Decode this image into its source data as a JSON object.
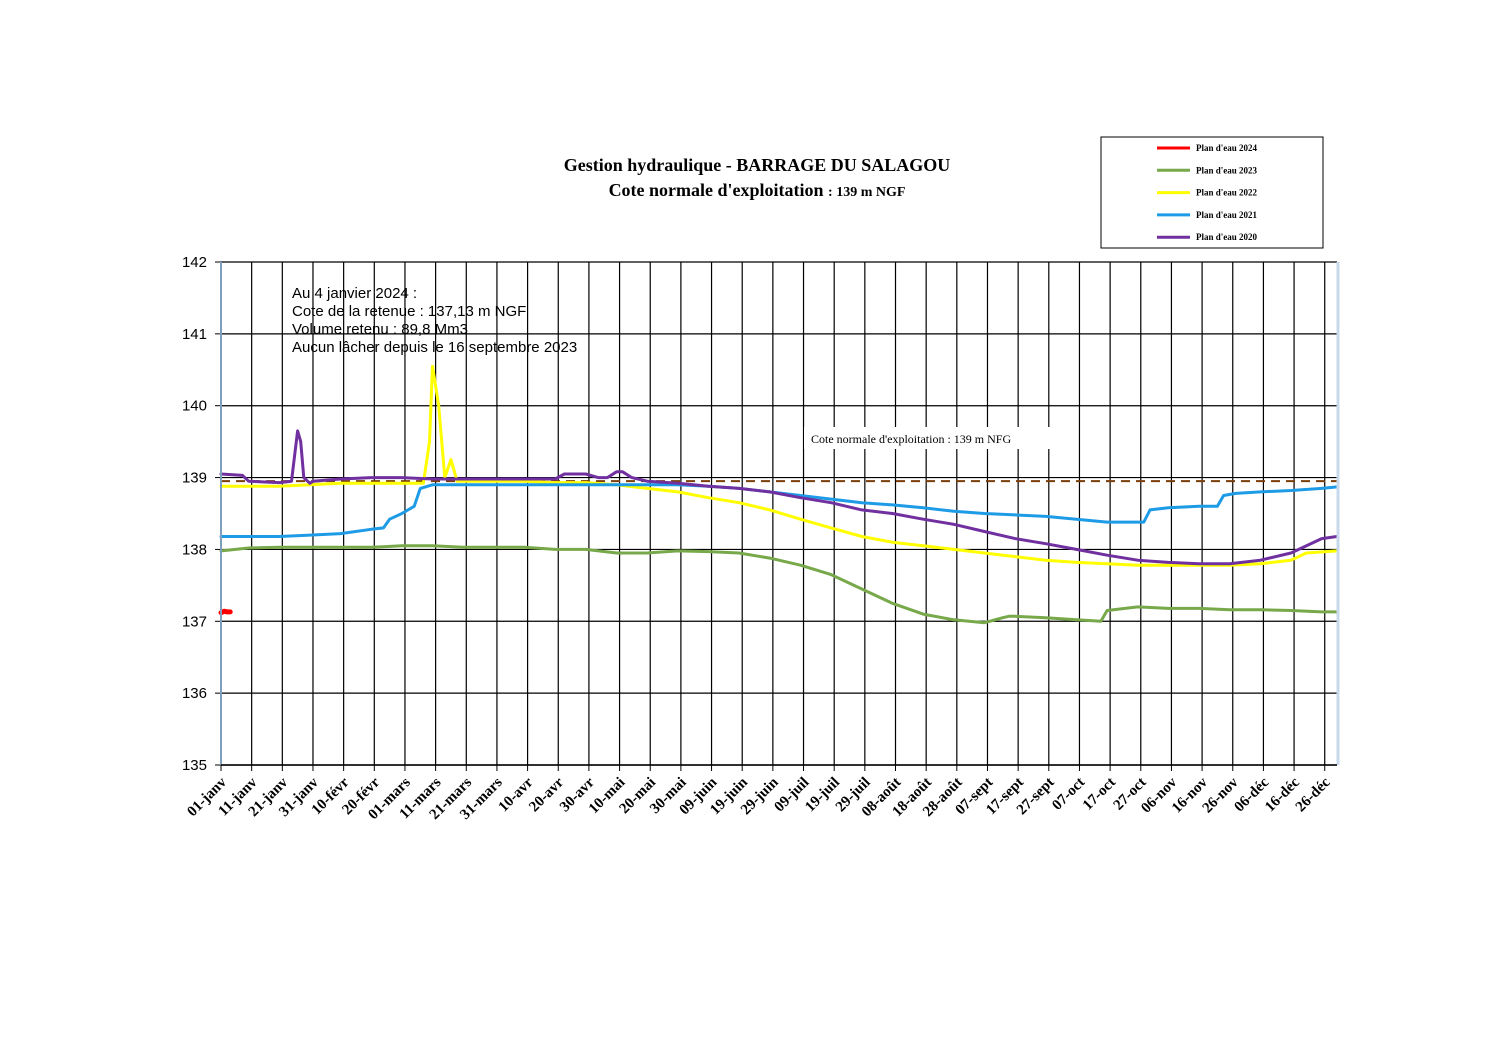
{
  "chart_data": {
    "type": "line",
    "title": "Gestion hydraulique - BARRAGE DU SALAGOU",
    "subtitle": "Cote normale d'exploitation",
    "subtitle_value": ": 139 m NGF",
    "xlabel": "",
    "ylabel": "",
    "ylim": [
      135,
      142
    ],
    "yticks": [
      "142",
      "141",
      "140",
      "139",
      "138",
      "137",
      "136",
      "135"
    ],
    "xlim": [
      1,
      365
    ],
    "grid": true,
    "legend_position": "top-right",
    "categories": [
      "01-janv",
      "11-janv",
      "21-janv",
      "31-janv",
      "10-févr",
      "20-févr",
      "01-mars",
      "11-mars",
      "21-mars",
      "31-mars",
      "10-avr",
      "20-avr",
      "30-avr",
      "10-mai",
      "20-mai",
      "30-mai",
      "09-juin",
      "19-juin",
      "29-juin",
      "09-juil",
      "19-juil",
      "29-juil",
      "08-août",
      "18-août",
      "28-août",
      "07-sept",
      "17-sept",
      "27-sept",
      "07-oct",
      "17-oct",
      "27-oct",
      "06-nov",
      "16-nov",
      "26-nov",
      "06-déc",
      "16-déc",
      "26-déc"
    ],
    "category_days": [
      1,
      11,
      21,
      31,
      41,
      51,
      61,
      71,
      81,
      91,
      101,
      111,
      121,
      131,
      141,
      151,
      161,
      171,
      181,
      191,
      201,
      211,
      221,
      231,
      241,
      251,
      261,
      271,
      281,
      291,
      301,
      311,
      321,
      331,
      341,
      351,
      361
    ],
    "reference_line": {
      "value": 138.95,
      "label": "Cote normale d'exploitation : 139 m NFG",
      "color": "#7a3e0a"
    },
    "annotations": [
      "Au 4 janvier 2024 :",
      "Cote de la retenue : 137,13 m NGF",
      "Volume retenu : 89,8 Mm3",
      "Aucun lâcher depuis le 16 septembre 2023"
    ],
    "series": [
      {
        "name": "Plan d'eau 2024",
        "color": "#ff0000",
        "x": [
          1,
          2,
          3,
          4
        ],
        "y": [
          137.12,
          137.14,
          137.13,
          137.13
        ]
      },
      {
        "name": "Plan d'eau 2023",
        "color": "#77a84a",
        "x": [
          1,
          10,
          20,
          30,
          40,
          50,
          60,
          70,
          80,
          90,
          100,
          110,
          120,
          130,
          140,
          150,
          160,
          170,
          180,
          190,
          200,
          210,
          220,
          230,
          240,
          250,
          256,
          258,
          260,
          270,
          280,
          288,
          290,
          300,
          310,
          320,
          330,
          340,
          350,
          360,
          365
        ],
        "y": [
          137.98,
          138.02,
          138.03,
          138.03,
          138.03,
          138.03,
          138.05,
          138.05,
          138.03,
          138.03,
          138.03,
          138.0,
          138.0,
          137.95,
          137.95,
          137.98,
          137.97,
          137.95,
          137.88,
          137.78,
          137.65,
          137.45,
          137.25,
          137.1,
          137.02,
          136.98,
          137.05,
          137.07,
          137.07,
          137.05,
          137.02,
          137.0,
          137.15,
          137.2,
          137.18,
          137.18,
          137.16,
          137.16,
          137.15,
          137.13,
          137.13
        ]
      },
      {
        "name": "Plan d'eau 2022",
        "color": "#ffff00",
        "x": [
          1,
          10,
          20,
          30,
          40,
          50,
          60,
          67,
          69,
          70,
          72,
          74,
          76,
          78,
          80,
          90,
          100,
          110,
          120,
          130,
          140,
          150,
          160,
          170,
          180,
          190,
          200,
          210,
          220,
          230,
          240,
          250,
          260,
          270,
          280,
          290,
          300,
          310,
          320,
          330,
          340,
          350,
          355,
          365
        ],
        "y": [
          138.88,
          138.88,
          138.88,
          138.9,
          138.92,
          138.92,
          138.92,
          138.92,
          139.5,
          140.55,
          140.0,
          139.0,
          139.25,
          138.95,
          138.95,
          138.95,
          138.95,
          138.93,
          138.93,
          138.9,
          138.85,
          138.8,
          138.72,
          138.65,
          138.55,
          138.42,
          138.3,
          138.18,
          138.1,
          138.05,
          138.0,
          137.95,
          137.9,
          137.85,
          137.82,
          137.8,
          137.78,
          137.78,
          137.78,
          137.78,
          137.8,
          137.85,
          137.95,
          137.98
        ]
      },
      {
        "name": "Plan d'eau 2021",
        "color": "#1e9be6",
        "x": [
          1,
          10,
          20,
          30,
          40,
          50,
          54,
          56,
          60,
          64,
          66,
          70,
          80,
          90,
          100,
          110,
          120,
          130,
          140,
          150,
          160,
          170,
          180,
          190,
          200,
          210,
          220,
          230,
          240,
          250,
          260,
          270,
          280,
          290,
          302,
          304,
          310,
          320,
          326,
          328,
          332,
          340,
          350,
          360,
          365
        ],
        "y": [
          138.18,
          138.18,
          138.18,
          138.2,
          138.22,
          138.28,
          138.3,
          138.42,
          138.5,
          138.6,
          138.85,
          138.9,
          138.9,
          138.9,
          138.9,
          138.9,
          138.9,
          138.9,
          138.9,
          138.9,
          138.88,
          138.85,
          138.8,
          138.75,
          138.7,
          138.65,
          138.62,
          138.58,
          138.53,
          138.5,
          138.48,
          138.46,
          138.42,
          138.38,
          138.38,
          138.55,
          138.58,
          138.6,
          138.6,
          138.75,
          138.78,
          138.8,
          138.82,
          138.85,
          138.87
        ]
      },
      {
        "name": "Plan d'eau 2020",
        "color": "#7030a0",
        "x": [
          1,
          8,
          10,
          20,
          24,
          26,
          27,
          28,
          30,
          31,
          40,
          50,
          60,
          70,
          80,
          90,
          100,
          110,
          113,
          120,
          124,
          127,
          130,
          132,
          135,
          140,
          150,
          160,
          170,
          180,
          190,
          200,
          210,
          220,
          230,
          240,
          250,
          260,
          270,
          280,
          290,
          300,
          310,
          320,
          330,
          340,
          350,
          360,
          365
        ],
        "y": [
          139.05,
          139.03,
          138.95,
          138.93,
          138.95,
          139.65,
          139.5,
          139.0,
          138.92,
          138.95,
          138.98,
          139.0,
          139.0,
          138.98,
          138.98,
          138.98,
          138.98,
          138.98,
          139.05,
          139.05,
          139.0,
          139.0,
          139.08,
          139.08,
          139.0,
          138.95,
          138.92,
          138.88,
          138.85,
          138.8,
          138.72,
          138.65,
          138.55,
          138.5,
          138.42,
          138.35,
          138.25,
          138.15,
          138.08,
          138.0,
          137.92,
          137.85,
          137.82,
          137.8,
          137.8,
          137.85,
          137.95,
          138.15,
          138.18
        ]
      }
    ]
  }
}
